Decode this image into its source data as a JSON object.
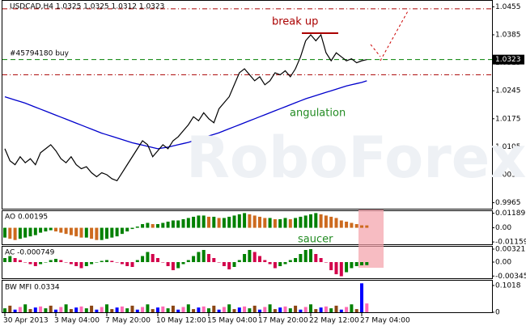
{
  "chart_data": [
    {
      "type": "line",
      "title": "USDCAD,H4  1.0325 1.0325 1.0312 1.0323",
      "watermark": "RoboForex",
      "order_label": "#45794180 buy",
      "current_price": 1.0323,
      "annotations": [
        "break up",
        "angulation"
      ],
      "levels": [
        1.0285,
        1.045
      ],
      "level_color": "#aa0000",
      "categories": [
        "30 Apr 2013",
        null,
        null,
        null,
        null,
        null,
        null,
        null,
        null,
        null,
        "3 May 04:00",
        null,
        null,
        null,
        null,
        null,
        null,
        null,
        null,
        null,
        "7 May 20:00",
        null,
        null,
        null,
        null,
        null,
        null,
        null,
        null,
        null,
        "10 May 12:00",
        null,
        null,
        null,
        null,
        null,
        null,
        null,
        null,
        null,
        "15 May 04:00",
        null,
        null,
        null,
        null,
        null,
        null,
        null,
        null,
        null,
        "17 May 20:00",
        null,
        null,
        null,
        null,
        null,
        null,
        null,
        null,
        null,
        "22 May 12:00",
        null,
        null,
        null,
        null,
        null,
        null,
        null,
        null,
        null,
        "27 May 04:00",
        null
      ],
      "values": [
        1.01,
        1.007,
        1.006,
        1.008,
        1.0065,
        1.0075,
        1.006,
        1.009,
        1.01,
        1.011,
        1.0095,
        1.0075,
        1.0065,
        1.008,
        1.006,
        1.005,
        1.0055,
        1.004,
        1.003,
        1.004,
        1.0035,
        1.0025,
        1.002,
        1.004,
        1.006,
        1.008,
        1.01,
        1.012,
        1.011,
        1.008,
        1.0095,
        1.011,
        1.01,
        1.012,
        1.013,
        1.0145,
        1.016,
        1.018,
        1.017,
        1.019,
        1.0175,
        1.0165,
        1.02,
        1.0215,
        1.023,
        1.026,
        1.029,
        1.03,
        1.0285,
        1.027,
        1.028,
        1.026,
        1.027,
        1.029,
        1.0285,
        1.0295,
        1.028,
        1.03,
        1.033,
        1.037,
        1.0385,
        1.037,
        1.0385,
        1.034,
        1.032,
        1.034,
        1.033,
        1.032,
        1.0325,
        1.0315,
        1.032,
        1.0323
      ],
      "color": "#000000",
      "series": [
        {
          "color": "#0000cc",
          "values": [
            1.023,
            1.0226,
            1.0222,
            1.0218,
            1.0214,
            1.0209,
            1.0204,
            1.0199,
            1.0194,
            1.0189,
            1.0184,
            1.0179,
            1.0174,
            1.0169,
            1.0164,
            1.0159,
            1.0154,
            1.0149,
            1.0144,
            1.0139,
            1.0135,
            1.0131,
            1.0127,
            1.0123,
            1.0119,
            1.0115,
            1.0112,
            1.0109,
            1.0106,
            1.0103,
            1.01,
            1.0102,
            1.0104,
            1.0107,
            1.011,
            1.0113,
            1.0116,
            1.012,
            1.0124,
            1.0128,
            1.0132,
            1.0136,
            1.014,
            1.0145,
            1.015,
            1.0155,
            1.016,
            1.0165,
            1.017,
            1.0175,
            1.018,
            1.0185,
            1.019,
            1.0195,
            1.02,
            1.0205,
            1.021,
            1.0215,
            1.022,
            1.0225,
            1.0229,
            1.0233,
            1.0237,
            1.0241,
            1.0245,
            1.0249,
            1.0253,
            1.0257,
            1.026,
            1.0263,
            1.0266,
            1.027
          ]
        }
      ],
      "ylim": [
        0.995,
        1.047
      ],
      "yticks": [
        1.0455,
        1.0385,
        1.0315,
        1.0245,
        1.0175,
        1.0105,
        1.0035,
        0.9965
      ]
    },
    {
      "type": "bar",
      "title": "AO 0.00195",
      "annotations": [
        "saucer"
      ],
      "up_color": "#008000",
      "down_color": "#cd6a1e",
      "values": [
        -0.008,
        -0.009,
        -0.01,
        -0.009,
        -0.008,
        -0.007,
        -0.006,
        -0.004,
        -0.003,
        -0.002,
        -0.003,
        -0.004,
        -0.005,
        -0.006,
        -0.007,
        -0.008,
        -0.008,
        -0.009,
        -0.01,
        -0.01,
        -0.009,
        -0.008,
        -0.007,
        -0.005,
        -0.003,
        -0.001,
        0.001,
        0.003,
        0.004,
        0.003,
        0.003,
        0.004,
        0.005,
        0.006,
        0.006,
        0.007,
        0.008,
        0.009,
        0.01,
        0.01,
        0.009,
        0.009,
        0.008,
        0.008,
        0.009,
        0.01,
        0.011,
        0.012,
        0.011,
        0.01,
        0.009,
        0.008,
        0.008,
        0.007,
        0.007,
        0.008,
        0.007,
        0.008,
        0.009,
        0.01,
        0.011,
        0.012,
        0.011,
        0.01,
        0.009,
        0.008,
        0.006,
        0.005,
        0.004,
        0.003,
        0.002,
        0.00195
      ],
      "ylim": [
        -0.0135,
        0.0136
      ],
      "yticks": [
        0.01189,
        {
          "value": 0,
          "label": "0.00"
        },
        -0.01159
      ]
    },
    {
      "type": "bar",
      "title": "AC -0.000749",
      "up_color": "#008000",
      "down_color": "#d2004a",
      "values": [
        0.001,
        0.0015,
        0.001,
        0.0005,
        0,
        -0.0005,
        -0.001,
        -0.0005,
        0,
        0.0005,
        0.0008,
        0.0005,
        0,
        -0.0005,
        -0.001,
        -0.0015,
        -0.001,
        -0.0005,
        0,
        0.0003,
        0.0005,
        0.0003,
        0,
        -0.0005,
        -0.001,
        -0.0012,
        0.0005,
        0.0015,
        0.0025,
        0.002,
        0.001,
        0,
        -0.001,
        -0.002,
        -0.0015,
        -0.0005,
        0.0005,
        0.0015,
        0.0025,
        0.003,
        0.002,
        0.001,
        0,
        -0.001,
        -0.0018,
        -0.0012,
        0.0005,
        0.002,
        0.003,
        0.0025,
        0.0015,
        0.0005,
        -0.0005,
        -0.0015,
        -0.001,
        -0.0005,
        0.0005,
        0.001,
        0.002,
        0.003,
        0.0032,
        0.002,
        0.001,
        0,
        -0.002,
        -0.003,
        -0.0035,
        -0.0025,
        -0.0015,
        -0.001,
        -0.0008,
        -0.000749
      ],
      "ylim": [
        -0.004,
        0.0038
      ],
      "yticks": [
        0.00321,
        {
          "value": 0,
          "label": "0.00"
        },
        -0.00345
      ]
    },
    {
      "type": "bar",
      "title": "BW MFI 0.0334",
      "palette": [
        "#008000",
        "#8b4513",
        "#0000ff",
        "#ff69b4"
      ],
      "values": [
        0.015,
        0.025,
        0.01,
        0.02,
        0.03,
        0.012,
        0.018,
        0.022,
        0.015,
        0.025,
        0.01,
        0.02,
        0.03,
        0.012,
        0.018,
        0.022,
        0.015,
        0.025,
        0.01,
        0.02,
        0.03,
        0.012,
        0.018,
        0.022,
        0.015,
        0.025,
        0.01,
        0.02,
        0.03,
        0.012,
        0.018,
        0.022,
        0.015,
        0.025,
        0.01,
        0.02,
        0.03,
        0.012,
        0.018,
        0.022,
        0.015,
        0.025,
        0.01,
        0.02,
        0.03,
        0.012,
        0.018,
        0.022,
        0.015,
        0.025,
        0.01,
        0.02,
        0.03,
        0.012,
        0.018,
        0.022,
        0.015,
        0.025,
        0.01,
        0.02,
        0.03,
        0.012,
        0.018,
        0.022,
        0.015,
        0.025,
        0.01,
        0.02,
        0.03,
        0.012,
        0.11,
        0.0334
      ],
      "ylim": [
        0,
        0.12
      ],
      "yticks": [
        0.1018,
        0
      ]
    }
  ]
}
